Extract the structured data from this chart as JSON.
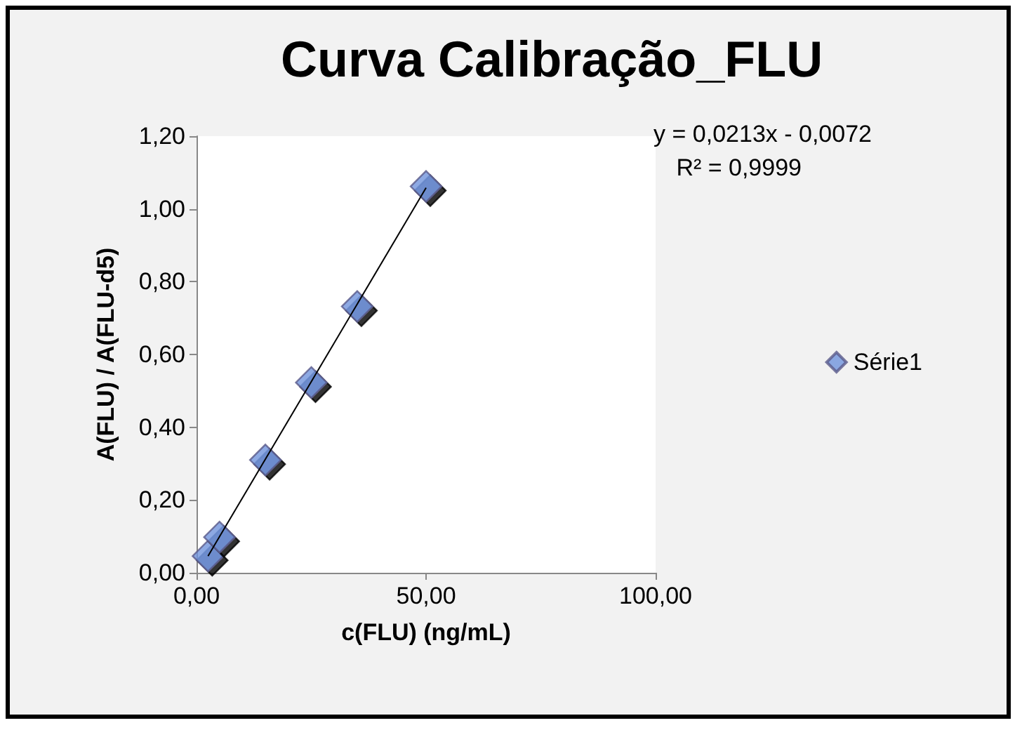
{
  "chart_data": {
    "type": "scatter",
    "title": "Curva Calibração_FLU",
    "xlabel": "c(FLU) (ng/mL)",
    "ylabel": "A(FLU) / A(FLU-d5)",
    "series": [
      {
        "name": "Série1",
        "color": "#6f94dc",
        "x": [
          2.5,
          5,
          15,
          25,
          35,
          50
        ],
        "values": [
          0.046,
          0.098,
          0.31,
          0.523,
          0.732,
          1.062
        ]
      },
      {
        "type": "line",
        "marker": "none",
        "color": "#000000",
        "x": [
          2.5,
          50
        ],
        "values": [
          0.046,
          1.058
        ]
      }
    ],
    "xlim": [
      0,
      100
    ],
    "xticks": [
      {
        "value": 0,
        "label": "0,00"
      },
      {
        "value": 50,
        "label": "50,00"
      },
      {
        "value": 100,
        "label": "100,00"
      }
    ],
    "ylim": [
      0,
      1.2
    ],
    "yticks": [
      {
        "value": 0,
        "label": "0,00"
      },
      {
        "value": 0.2,
        "label": "0,20"
      },
      {
        "value": 0.4,
        "label": "0,40"
      },
      {
        "value": 0.6,
        "label": "0,60"
      },
      {
        "value": 0.8,
        "label": "0,80"
      },
      {
        "value": 1,
        "label": "1,00"
      },
      {
        "value": 1.2,
        "label": "1,20"
      }
    ],
    "annotations": [
      "y = 0,0213x - 0,0072",
      "R² = 0,9999"
    ],
    "grid": false,
    "legend": "right",
    "marker": "diamond"
  }
}
